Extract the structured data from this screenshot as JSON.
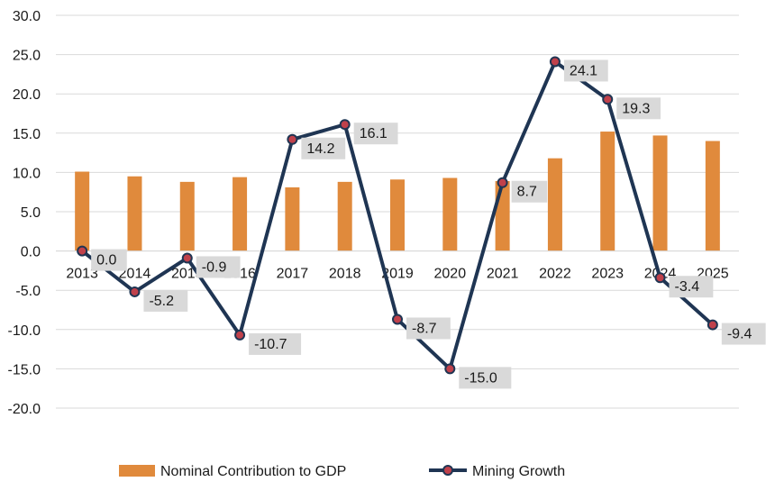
{
  "chart_data": {
    "type": "bar+line",
    "categories": [
      "2013",
      "2014",
      "2015",
      "2016",
      "2017",
      "2018",
      "2019",
      "2020",
      "2021",
      "2022",
      "2023",
      "2024",
      "2025"
    ],
    "series": [
      {
        "name": "Nominal Contribution to GDP",
        "type": "bar",
        "color": "#E08A3C",
        "values": [
          10.1,
          9.5,
          8.8,
          9.4,
          8.1,
          8.8,
          9.1,
          9.3,
          8.9,
          11.8,
          15.2,
          14.7,
          14.0
        ]
      },
      {
        "name": "Mining Growth",
        "type": "line",
        "color": "#1F3553",
        "marker_color": "#C0414B",
        "values": [
          0.0,
          -5.2,
          -0.9,
          -10.7,
          14.2,
          16.1,
          -8.7,
          -15.0,
          8.7,
          24.1,
          19.3,
          -3.4,
          -9.4
        ],
        "data_labels": [
          "0.0",
          "-5.2",
          "-0.9",
          "-10.7",
          "14.2",
          "16.1",
          "-8.7",
          "-15.0",
          "8.7",
          "24.1",
          "19.3",
          "-3.4",
          "-9.4"
        ]
      }
    ],
    "yticks": [
      "-20.0",
      "-15.0",
      "-10.0",
      "-5.0",
      "0.0",
      "5.0",
      "10.0",
      "15.0",
      "20.0",
      "25.0",
      "30.0"
    ],
    "ylim": [
      -20,
      30
    ],
    "grid": true,
    "legend_position": "bottom"
  }
}
